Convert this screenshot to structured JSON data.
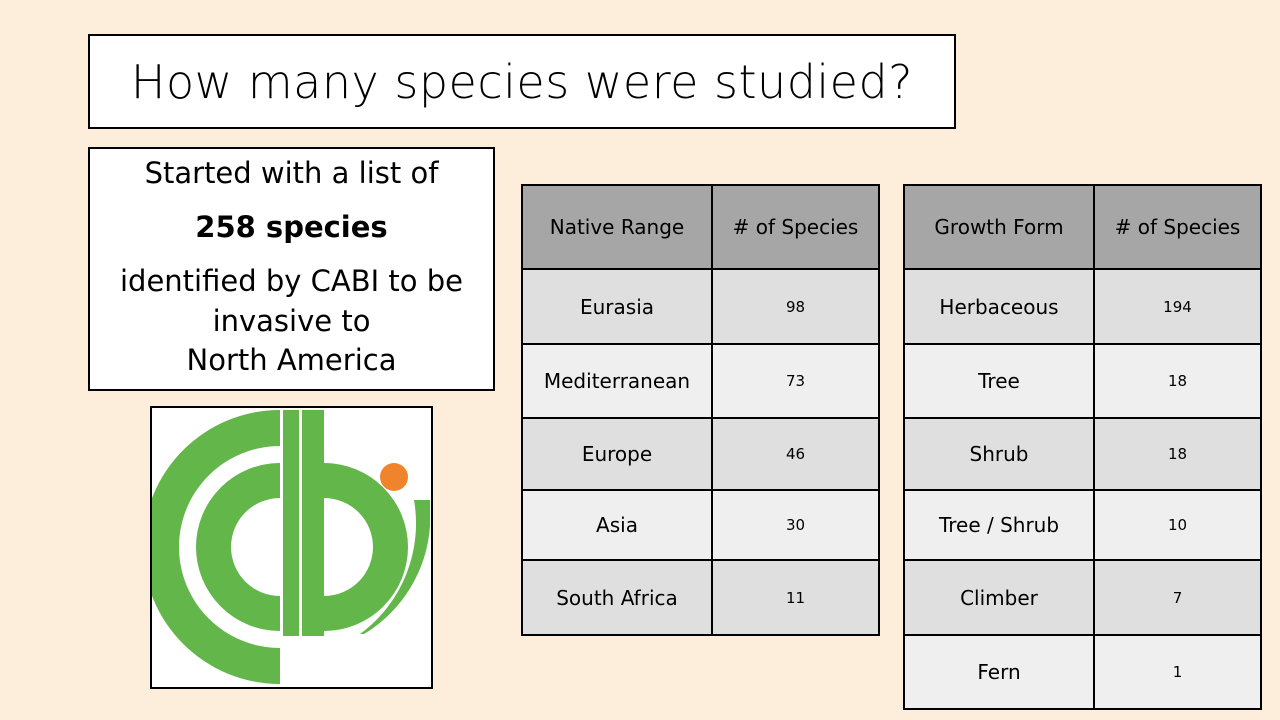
{
  "title": "How many species were studied?",
  "info": {
    "line1": "Started with a list of",
    "line2": "258 species",
    "line3": "identified by CABI to be",
    "line4": "invasive to",
    "line5": "North America"
  },
  "logo": {
    "text": "cabi",
    "green": "#62b64a",
    "orange": "#f0842c"
  },
  "native_range_table": {
    "headers": [
      "Native Range",
      "# of Species"
    ],
    "rows": [
      [
        "Eurasia",
        "98"
      ],
      [
        "Mediterranean",
        "73"
      ],
      [
        "Europe",
        "46"
      ],
      [
        "Asia",
        "30"
      ],
      [
        "South Africa",
        "11"
      ]
    ]
  },
  "growth_form_table": {
    "headers": [
      "Growth Form",
      "# of Species"
    ],
    "rows": [
      [
        "Herbaceous",
        "194"
      ],
      [
        "Tree",
        "18"
      ],
      [
        "Shrub",
        "18"
      ],
      [
        "Tree / Shrub",
        "10"
      ],
      [
        "Climber",
        "7"
      ],
      [
        "Fern",
        "1"
      ]
    ]
  },
  "colors": {
    "background": "#fdeedb",
    "header_cell": "#a6a6a6",
    "row_dark": "#dfdfdf",
    "row_light": "#efefef"
  }
}
